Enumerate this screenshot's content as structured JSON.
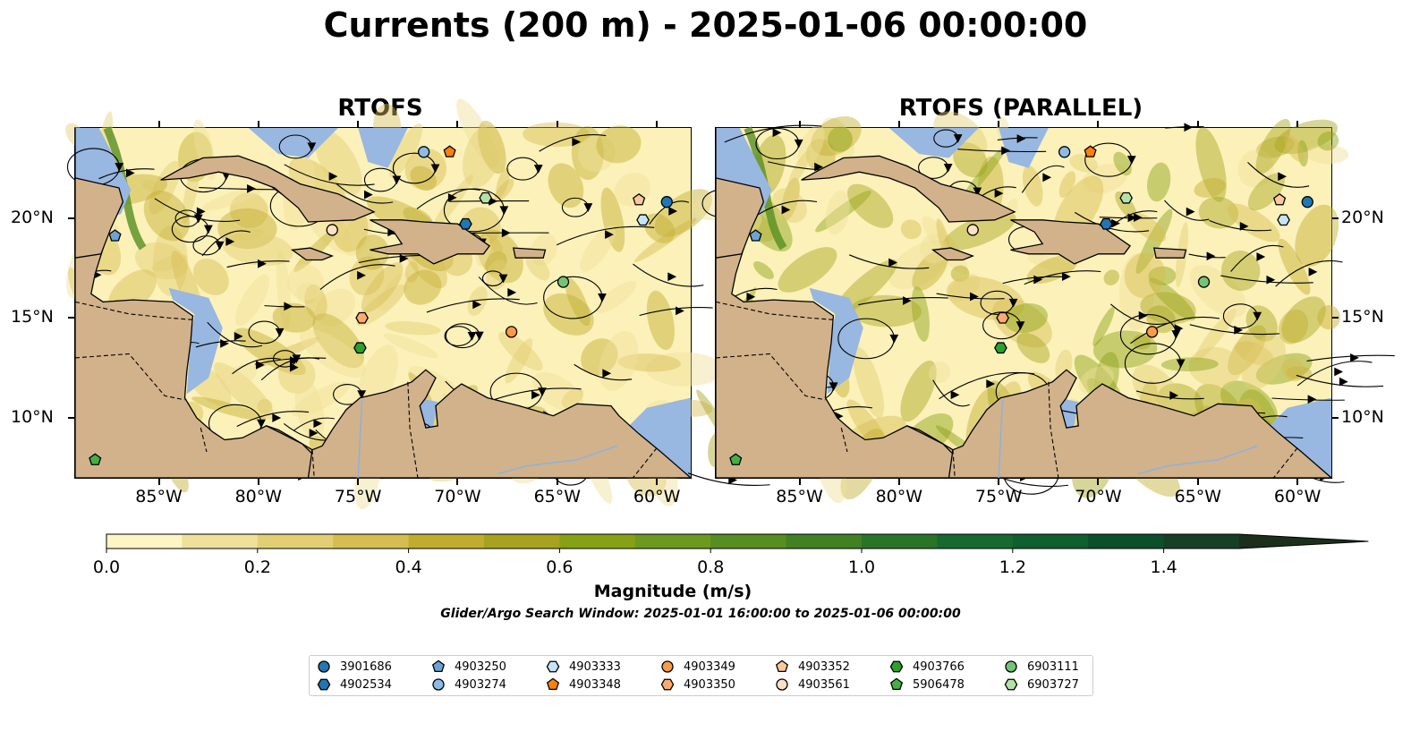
{
  "title": "Currents (200 m) - 2025-01-06 00:00:00",
  "panels": [
    {
      "title": "RTOFS"
    },
    {
      "title": "RTOFS (PARALLEL)"
    }
  ],
  "axes": {
    "lon_ticks": [
      "85°W",
      "80°W",
      "75°W",
      "70°W",
      "65°W",
      "60°W"
    ],
    "lat_ticks": [
      "20°N",
      "15°N",
      "10°N"
    ],
    "lon_range": [
      -89.2,
      -58.3
    ],
    "lat_range": [
      7.0,
      24.5
    ]
  },
  "colorbar": {
    "label": "Magnitude (m/s)",
    "ticks": [
      "0.0",
      "0.2",
      "0.4",
      "0.6",
      "0.8",
      "1.0",
      "1.2",
      "1.4"
    ],
    "colors": [
      "#fdf5c4",
      "#efe19a",
      "#e2cf73",
      "#d6bd51",
      "#c0ad2e",
      "#a7a31f",
      "#87a114",
      "#6d9a1e",
      "#588e21",
      "#418121",
      "#2a7427",
      "#166a30",
      "#0f5f2f",
      "#0b5028",
      "#163f25",
      "#1b2f1b"
    ],
    "extend": "max"
  },
  "search_window": "Glider/Argo Search Window: 2025-01-01 16:00:00 to 2025-01-06 00:00:00",
  "colors": {
    "land": "#d2b28b",
    "shallow": "#98b7e1",
    "current_low": "#fbf1b9"
  },
  "floats": [
    {
      "id": "3901686",
      "marker": "circle",
      "color": "#1f77b4",
      "lon": -59.5,
      "lat": 20.8
    },
    {
      "id": "4902534",
      "marker": "hexagon",
      "color": "#1f77b4",
      "lon": -69.6,
      "lat": 19.7
    },
    {
      "id": "4903250",
      "marker": "pentagon",
      "color": "#6ba3d6",
      "lon": -87.2,
      "lat": 19.1
    },
    {
      "id": "4903274",
      "marker": "circle",
      "color": "#8dbbe3",
      "lon": -71.7,
      "lat": 23.3
    },
    {
      "id": "4903333",
      "marker": "hexagon",
      "color": "#c5e4f7",
      "lon": -60.7,
      "lat": 19.9
    },
    {
      "id": "4903348",
      "marker": "pentagon",
      "color": "#ff7f0e",
      "lon": -70.4,
      "lat": 23.3
    },
    {
      "id": "4903349",
      "marker": "circle",
      "color": "#fd9a48",
      "lon": -67.3,
      "lat": 14.3
    },
    {
      "id": "4903350",
      "marker": "hexagon",
      "color": "#fdab6e",
      "lon": -74.8,
      "lat": 15.0
    },
    {
      "id": "4903352",
      "marker": "pentagon",
      "color": "#fcc79a",
      "lon": -60.9,
      "lat": 20.9
    },
    {
      "id": "4903561",
      "marker": "circle",
      "color": "#fde0c5",
      "lon": -76.3,
      "lat": 19.4
    },
    {
      "id": "4903766",
      "marker": "hexagon",
      "color": "#2ca02c",
      "lon": -74.9,
      "lat": 13.5
    },
    {
      "id": "5906478",
      "marker": "pentagon",
      "color": "#44b044",
      "lon": -88.2,
      "lat": 7.9
    },
    {
      "id": "6903111",
      "marker": "circle",
      "color": "#74c476",
      "lon": -64.7,
      "lat": 16.8
    },
    {
      "id": "6903727",
      "marker": "hexagon",
      "color": "#b3e2a8",
      "lon": -68.6,
      "lat": 21.0
    }
  ]
}
